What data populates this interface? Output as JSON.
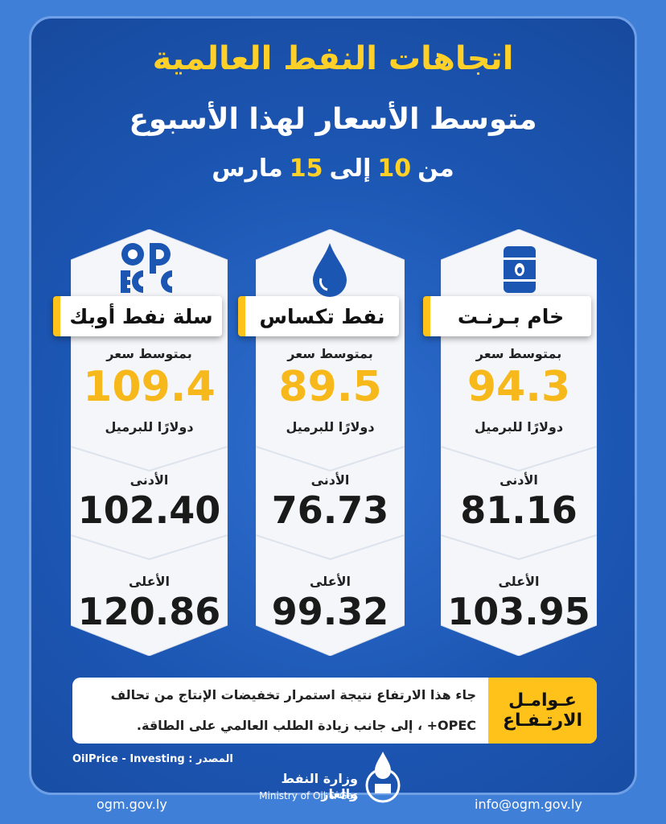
{
  "header": {
    "title": "اتجاهات النفط العالمية",
    "subtitle": "متوسط الأسعار لهذا الأسبوع",
    "period": [
      "من",
      "10",
      "إلى",
      "15",
      "مارس"
    ]
  },
  "cards": [
    {
      "name": "خام بـرنـت",
      "avg_label": "بمتوسط سعر",
      "avg": "94.3",
      "unit": "دولارًا للبرميل",
      "low_label": "الأدنى",
      "low": "81.16",
      "high_label": "الأعلى",
      "high": "103.95"
    },
    {
      "name": "نفط تكساس",
      "avg_label": "بمتوسط سعر",
      "avg": "89.5",
      "unit": "دولارًا للبرميل",
      "low_label": "الأدنى",
      "low": "76.73",
      "high_label": "الأعلى",
      "high": "99.32"
    },
    {
      "name": "سلة نفط أوبك",
      "avg_label": "بمتوسط سعر",
      "avg": "109.4",
      "unit": "دولارًا للبرميل",
      "low_label": "الأدنى",
      "low": "102.40",
      "high_label": "الأعلى",
      "high": "120.86"
    }
  ],
  "factors": {
    "label": [
      "عـوامـل",
      "الارتـفـاع"
    ],
    "lines": [
      "جاء هذا الارتفاع نتيجة استمرار تخفيضات الإنتاج من تحالف",
      "OPEC+ ، إلى جانب زيادة الطلب العالمي على الطاقة."
    ]
  },
  "source": "المصدر : OilPrice - Investing",
  "footer": {
    "website": "ogm.gov.ly",
    "ministry_ar": "وزارة النفط والغاز",
    "ministry_en": "Ministry of Oil & Gas",
    "email": "info@ogm.gov.ly"
  }
}
